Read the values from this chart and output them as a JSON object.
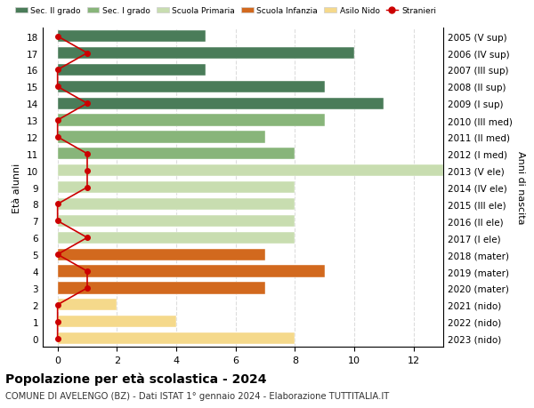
{
  "ages": [
    18,
    17,
    16,
    15,
    14,
    13,
    12,
    11,
    10,
    9,
    8,
    7,
    6,
    5,
    4,
    3,
    2,
    1,
    0
  ],
  "years": [
    "2005 (V sup)",
    "2006 (IV sup)",
    "2007 (III sup)",
    "2008 (II sup)",
    "2009 (I sup)",
    "2010 (III med)",
    "2011 (II med)",
    "2012 (I med)",
    "2013 (V ele)",
    "2014 (IV ele)",
    "2015 (III ele)",
    "2016 (II ele)",
    "2017 (I ele)",
    "2018 (mater)",
    "2019 (mater)",
    "2020 (mater)",
    "2021 (nido)",
    "2022 (nido)",
    "2023 (nido)"
  ],
  "bar_values": [
    5,
    10,
    5,
    9,
    11,
    9,
    7,
    8,
    13,
    8,
    8,
    8,
    8,
    7,
    9,
    7,
    2,
    4,
    8
  ],
  "bar_colors": [
    "#4a7c59",
    "#4a7c59",
    "#4a7c59",
    "#4a7c59",
    "#4a7c59",
    "#88b57a",
    "#88b57a",
    "#88b57a",
    "#c8ddb0",
    "#c8ddb0",
    "#c8ddb0",
    "#c8ddb0",
    "#c8ddb0",
    "#d2691e",
    "#d2691e",
    "#d2691e",
    "#f5d98b",
    "#f5d98b",
    "#f5d98b"
  ],
  "stranieri_values": [
    0,
    1,
    0,
    0,
    1,
    0,
    0,
    1,
    1,
    1,
    0,
    0,
    1,
    0,
    1,
    1,
    0,
    0,
    0
  ],
  "stranieri_color": "#cc0000",
  "legend_labels": [
    "Sec. II grado",
    "Sec. I grado",
    "Scuola Primaria",
    "Scuola Infanzia",
    "Asilo Nido",
    "Stranieri"
  ],
  "legend_colors": [
    "#4a7c59",
    "#88b57a",
    "#c8ddb0",
    "#d2691e",
    "#f5d98b",
    "#cc0000"
  ],
  "ylabel_left": "Età alunni",
  "ylabel_right": "Anni di nascita",
  "title": "Popolazione per età scolastica - 2024",
  "subtitle": "COMUNE DI AVELENGO (BZ) - Dati ISTAT 1° gennaio 2024 - Elaborazione TUTTITALIA.IT",
  "xlim": [
    -0.5,
    13
  ],
  "bg_color": "#ffffff",
  "grid_color": "#dddddd",
  "bar_height": 0.7
}
